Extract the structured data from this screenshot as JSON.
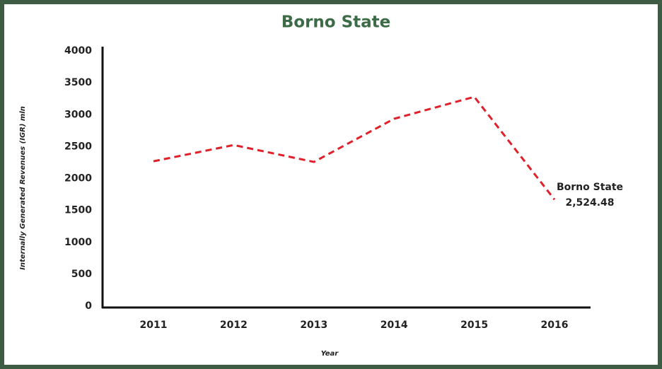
{
  "chart_data": {
    "type": "line",
    "title": "Borno State",
    "x_label": "Year",
    "y_label": "Internally Generated Revenues (IGR) mln",
    "categories": [
      "2011",
      "2012",
      "2013",
      "2014",
      "2015",
      "2016"
    ],
    "series": [
      {
        "name": "Borno State",
        "color": "#e0202a",
        "values": [
          2270,
          2524.48,
          2260,
          2936,
          3280,
          1670
        ],
        "value_labels": [
          null,
          "2,524.48",
          null,
          null,
          null,
          null
        ]
      }
    ],
    "ylim": [
      0,
      4000
    ],
    "yticks": [
      0,
      500,
      1000,
      1500,
      2000,
      2500,
      3000,
      3500,
      4000
    ]
  }
}
